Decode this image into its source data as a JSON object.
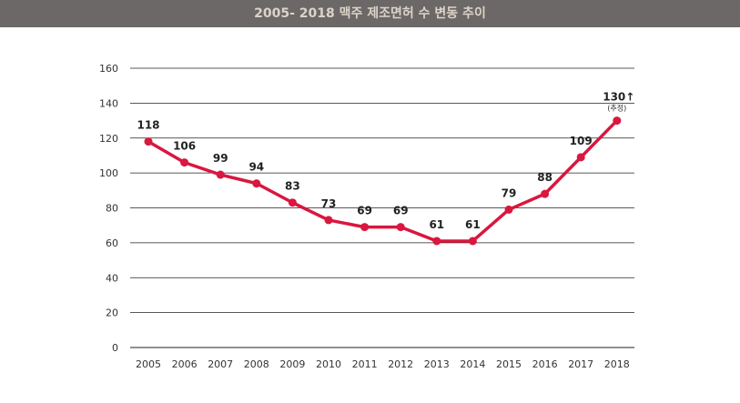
{
  "chart_data": {
    "type": "line",
    "title": "2005- 2018 맥주 제조면허 수 변동 추이",
    "xlabel": "",
    "ylabel": "",
    "x": [
      "2005",
      "2006",
      "2007",
      "2008",
      "2009",
      "2010",
      "2011",
      "2012",
      "2013",
      "2014",
      "2015",
      "2016",
      "2017",
      "2018"
    ],
    "series": [
      {
        "name": "맥주 제조면허 수",
        "values": [
          118,
          106,
          99,
          94,
          83,
          73,
          69,
          69,
          61,
          61,
          79,
          88,
          109,
          130
        ]
      }
    ],
    "data_labels": [
      "118",
      "106",
      "99",
      "94",
      "83",
      "73",
      "69",
      "69",
      "61",
      "61",
      "79",
      "88",
      "109",
      "130↑"
    ],
    "annotation": "(추정)",
    "ylim": [
      0,
      160
    ],
    "yticks": [
      0,
      20,
      40,
      60,
      80,
      100,
      120,
      140,
      160
    ],
    "grid": true,
    "colors": {
      "line": "#d9173f",
      "header_bg": "#6b6867",
      "grid": "#222222"
    }
  }
}
